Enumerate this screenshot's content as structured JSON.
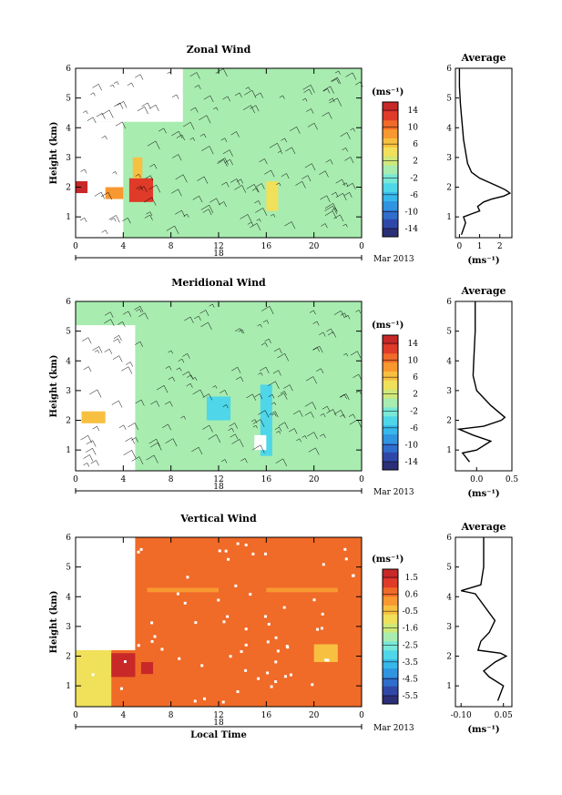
{
  "colors": {
    "cbar": [
      "#2b2f77",
      "#2f48a8",
      "#2f6ecc",
      "#2f95e0",
      "#38b8ea",
      "#4fd6e8",
      "#78e8d8",
      "#a8ecb0",
      "#cfe87a",
      "#f0e05a",
      "#f8c040",
      "#f89830",
      "#f06a28",
      "#e03a28",
      "#c82828"
    ],
    "wind_bg": "#7ee8c4",
    "vert_bg": "#fbc842",
    "frame": "#000000"
  },
  "panels": [
    {
      "title": "Zonal Wind",
      "ylabel": "Height (km)",
      "yticks": [
        "1",
        "2",
        "3",
        "4",
        "5",
        "6"
      ],
      "xticks": [
        "0",
        "4",
        "8",
        "12",
        "16",
        "20",
        "0"
      ],
      "day": "18",
      "month": "Mar 2013",
      "unit": "(ms⁻¹)",
      "cbar_ticks": [
        "14",
        "10",
        "6",
        "2",
        "-2",
        "-6",
        "-10",
        "-14"
      ],
      "avg_title": "Average",
      "avg_xticks": [
        "0",
        "1",
        "2"
      ],
      "avg_xlabel": "(ms⁻¹)",
      "avg_yticks": [
        "1",
        "2",
        "3",
        "4",
        "5",
        "6"
      ]
    },
    {
      "title": "Meridional Wind",
      "ylabel": "Height (km)",
      "yticks": [
        "1",
        "2",
        "3",
        "4",
        "5",
        "6"
      ],
      "xticks": [
        "0",
        "4",
        "8",
        "12",
        "16",
        "20",
        "0"
      ],
      "day": "18",
      "month": "Mar 2013",
      "unit": "(ms⁻¹)",
      "cbar_ticks": [
        "14",
        "10",
        "6",
        "2",
        "-2",
        "-6",
        "-10",
        "-14"
      ],
      "avg_title": "Average",
      "avg_xticks": [
        "0.0",
        "0.5"
      ],
      "avg_xlabel": "(ms⁻¹)",
      "avg_yticks": [
        "1",
        "2",
        "3",
        "4",
        "5",
        "6"
      ]
    },
    {
      "title": "Vertical Wind",
      "ylabel": "Height (km)",
      "yticks": [
        "1",
        "2",
        "3",
        "4",
        "5",
        "6"
      ],
      "xticks": [
        "0",
        "4",
        "8",
        "12",
        "16",
        "20",
        "0"
      ],
      "day": "18",
      "month": "Mar 2013",
      "xlabel": "Local Time",
      "unit": "(ms⁻¹)",
      "cbar_ticks": [
        "1.5",
        "0.6",
        "-0.5",
        "-1.6",
        "-2.5",
        "-3.5",
        "-4.5",
        "-5.5"
      ],
      "avg_title": "Average",
      "avg_xticks": [
        "-0.10",
        "0.05"
      ],
      "avg_xlabel": "(ms⁻¹)",
      "avg_yticks": [
        "1",
        "2",
        "3",
        "4",
        "5",
        "6"
      ]
    }
  ],
  "chart_data": [
    {
      "type": "heatmap",
      "title": "Zonal Wind",
      "xlabel": "",
      "ylabel": "Height (km)",
      "xlim": [
        0,
        24
      ],
      "ylim": [
        0.3,
        6
      ],
      "clim": [
        -16,
        16
      ],
      "background_value": 0,
      "features": [
        {
          "hours": [
            0,
            9
          ],
          "km": [
            4.2,
            6
          ],
          "value": null
        },
        {
          "hours": [
            0,
            4
          ],
          "km": [
            0.3,
            4.2
          ],
          "value": null
        },
        {
          "hours": [
            0,
            1
          ],
          "km": [
            1.8,
            2.2
          ],
          "value": 14
        },
        {
          "hours": [
            2.5,
            4
          ],
          "km": [
            1.6,
            2.0
          ],
          "value": 8
        },
        {
          "hours": [
            4.5,
            6.5
          ],
          "km": [
            1.5,
            2.3
          ],
          "value": 12
        },
        {
          "hours": [
            4.8,
            5.6
          ],
          "km": [
            2.3,
            3.0
          ],
          "value": 6
        },
        {
          "hours": [
            16,
            17
          ],
          "km": [
            1.2,
            2.2
          ],
          "value": 4
        },
        {
          "hours": [
            17,
            22
          ],
          "km": [
            1.0,
            2.3
          ],
          "value": 1
        }
      ]
    },
    {
      "type": "line",
      "title": "Average",
      "xlabel": "(ms⁻¹)",
      "ylabel": "",
      "xlim": [
        -0.2,
        2.6
      ],
      "ylim": [
        0.3,
        6
      ],
      "x": [
        0.1,
        0.2,
        0.3,
        0.2,
        0.6,
        1.0,
        0.9,
        1.2,
        1.6,
        2.2,
        2.5,
        2.3,
        2.0,
        1.0,
        0.6,
        0.4,
        0.3,
        0.2,
        0.15,
        0.1,
        0.05,
        0.0,
        0.0
      ],
      "y": [
        0.4,
        0.6,
        0.8,
        1.0,
        1.1,
        1.2,
        1.35,
        1.5,
        1.6,
        1.7,
        1.8,
        1.9,
        2.0,
        2.3,
        2.5,
        2.8,
        3.2,
        3.6,
        4.0,
        4.4,
        4.8,
        5.4,
        6.0
      ]
    },
    {
      "type": "heatmap",
      "title": "Meridional Wind",
      "xlabel": "",
      "ylabel": "Height (km)",
      "xlim": [
        0,
        24
      ],
      "ylim": [
        0.3,
        6
      ],
      "clim": [
        -16,
        16
      ],
      "background_value": 0,
      "features": [
        {
          "hours": [
            0,
            5
          ],
          "km": [
            0.3,
            5.2
          ],
          "value": null
        },
        {
          "hours": [
            0.5,
            2.5
          ],
          "km": [
            1.9,
            2.3
          ],
          "value": 6
        },
        {
          "hours": [
            11,
            13
          ],
          "km": [
            2.0,
            2.8
          ],
          "value": -4
        },
        {
          "hours": [
            15.5,
            16.5
          ],
          "km": [
            0.8,
            3.2
          ],
          "value": -5
        },
        {
          "hours": [
            15,
            16
          ],
          "km": [
            1.0,
            1.5
          ],
          "value": null
        }
      ]
    },
    {
      "type": "line",
      "title": "Average",
      "xlabel": "(ms⁻¹)",
      "ylabel": "",
      "xlim": [
        -0.3,
        0.5
      ],
      "ylim": [
        0.3,
        6
      ],
      "x": [
        -0.1,
        -0.2,
        0.0,
        0.2,
        -0.05,
        -0.25,
        0.1,
        0.35,
        0.4,
        0.2,
        0.0,
        -0.05,
        -0.04,
        -0.03,
        -0.02,
        -0.02
      ],
      "y": [
        0.6,
        0.9,
        1.0,
        1.3,
        1.5,
        1.7,
        1.8,
        2.0,
        2.1,
        2.5,
        3.0,
        3.5,
        4.0,
        4.5,
        5.0,
        6.0
      ]
    },
    {
      "type": "heatmap",
      "title": "Vertical Wind",
      "xlabel": "Local Time",
      "ylabel": "Height (km)",
      "xlim": [
        0,
        24
      ],
      "ylim": [
        0.3,
        6
      ],
      "clim": [
        -6,
        2
      ],
      "background_value": 0.6,
      "features": [
        {
          "hours": [
            0,
            5
          ],
          "km": [
            2.2,
            6
          ],
          "value": null
        },
        {
          "hours": [
            0,
            3
          ],
          "km": [
            0.3,
            2.2
          ],
          "value": -1.0
        },
        {
          "hours": [
            3,
            5
          ],
          "km": [
            1.3,
            2.1
          ],
          "value": 1.5
        },
        {
          "hours": [
            5.5,
            6.5
          ],
          "km": [
            1.4,
            1.8
          ],
          "value": 1.5
        },
        {
          "hours": [
            6,
            12
          ],
          "km": [
            4.15,
            4.3
          ],
          "value": 0.2
        },
        {
          "hours": [
            16,
            22
          ],
          "km": [
            4.15,
            4.3
          ],
          "value": 0.2
        },
        {
          "hours": [
            20,
            22
          ],
          "km": [
            1.8,
            2.4
          ],
          "value": -0.5
        }
      ]
    },
    {
      "type": "line",
      "title": "Average",
      "xlabel": "(ms⁻¹)",
      "ylabel": "",
      "xlim": [
        -0.12,
        0.08
      ],
      "ylim": [
        0.3,
        6
      ],
      "x": [
        0.03,
        0.05,
        0.0,
        -0.02,
        0.02,
        0.06,
        0.04,
        -0.04,
        -0.03,
        0.0,
        0.02,
        -0.05,
        -0.1,
        -0.03,
        -0.02,
        -0.02
      ],
      "y": [
        0.5,
        1.0,
        1.3,
        1.5,
        1.8,
        2.0,
        2.1,
        2.2,
        2.5,
        2.8,
        3.2,
        4.1,
        4.2,
        4.4,
        5.0,
        6.0
      ]
    }
  ]
}
